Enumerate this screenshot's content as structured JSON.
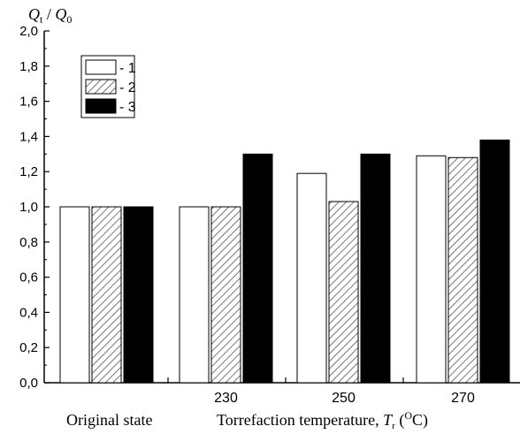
{
  "chart_data": {
    "type": "bar",
    "ylabel": "Q_t / Q_0",
    "ylabel_parts": {
      "q1": "Q",
      "s1": "t",
      "slash": " / ",
      "q2": "Q",
      "s2": "0"
    },
    "ylim": [
      0.0,
      2.0
    ],
    "yticks": [
      "0,0",
      "0,2",
      "0,4",
      "0,6",
      "0,8",
      "1,0",
      "1,2",
      "1,4",
      "1,6",
      "1,8",
      "2,0"
    ],
    "categories": [
      "Original state",
      "230",
      "250",
      "270"
    ],
    "category_labels": {
      "original": "Original state",
      "torrefaction": "Torrefaction temperature,",
      "torrefaction_symbol": "T",
      "torrefaction_sub": "r",
      "torrefaction_unit_open": " (",
      "torrefaction_unit_sup": "O",
      "torrefaction_unit_close": "C)"
    },
    "series": [
      {
        "name": "- 1",
        "values": [
          1.0,
          1.0,
          1.19,
          1.29
        ],
        "fill": "white"
      },
      {
        "name": "- 2",
        "values": [
          1.0,
          1.0,
          1.03,
          1.28
        ],
        "fill": "hatched"
      },
      {
        "name": "- 3",
        "values": [
          1.0,
          1.3,
          1.3,
          1.38
        ],
        "fill": "black"
      }
    ],
    "legend": {
      "placement": "top-left"
    },
    "grid": false
  }
}
